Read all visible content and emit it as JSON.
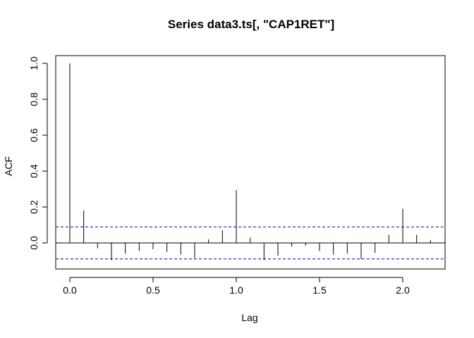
{
  "chart_data": {
    "type": "bar",
    "title": "Series  data3.ts[, \"CAP1RET\"]",
    "xlabel": "Lag",
    "ylabel": "ACF",
    "xlim": [
      -0.08,
      2.25
    ],
    "ylim": [
      -0.14,
      1.0
    ],
    "x_ticks": [
      0.0,
      0.5,
      1.0,
      1.5,
      2.0
    ],
    "x_tick_labels": [
      "0.0",
      "0.5",
      "1.0",
      "1.5",
      "2.0"
    ],
    "y_ticks": [
      0.0,
      0.2,
      0.4,
      0.6,
      0.8,
      1.0
    ],
    "y_tick_labels": [
      "0.0",
      "0.2",
      "0.4",
      "0.6",
      "0.8",
      "1.0"
    ],
    "confidence_bound": 0.089,
    "confidence_color": "#0000cc",
    "lags": [
      0,
      0.0833,
      0.1667,
      0.25,
      0.3333,
      0.4167,
      0.5,
      0.5833,
      0.6667,
      0.75,
      0.8333,
      0.9167,
      1.0,
      1.0833,
      1.1667,
      1.25,
      1.3333,
      1.4167,
      1.5,
      1.5833,
      1.6667,
      1.75,
      1.8333,
      1.9167,
      2.0,
      2.0833,
      2.1667
    ],
    "acf": [
      1.0,
      0.18,
      -0.03,
      -0.095,
      -0.06,
      -0.045,
      -0.035,
      -0.05,
      -0.065,
      -0.085,
      0.02,
      0.07,
      0.295,
      0.03,
      -0.095,
      -0.07,
      -0.02,
      -0.015,
      -0.045,
      -0.065,
      -0.06,
      -0.09,
      -0.055,
      0.045,
      0.19,
      0.045,
      0.015
    ],
    "grid": false,
    "legend": "none"
  }
}
